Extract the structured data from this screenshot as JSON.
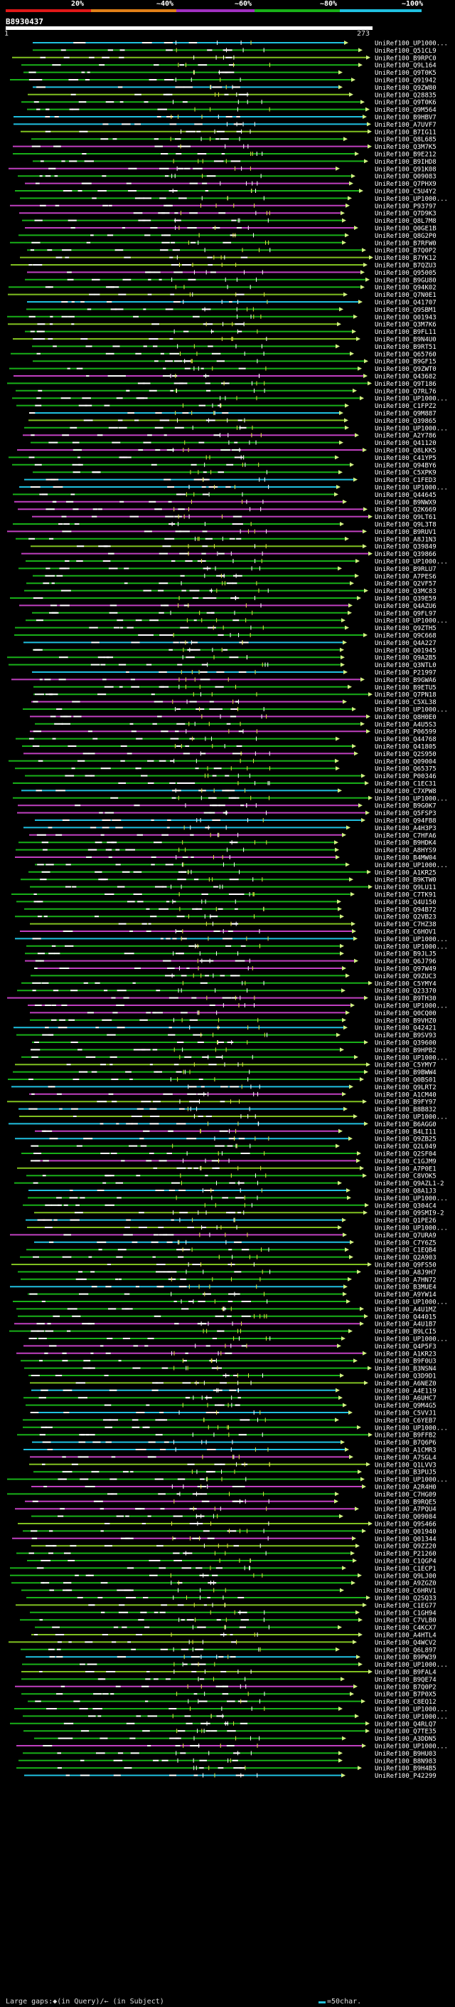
{
  "legend": {
    "items": [
      {
        "label": "20%",
        "color": "#e01818"
      },
      {
        "label": "~40%",
        "color": "#e08018"
      },
      {
        "label": "~60%",
        "color": "#a030c0"
      },
      {
        "label": "~80%",
        "color": "#18b018"
      },
      {
        "label": "~100%",
        "color": "#20c0e0"
      }
    ]
  },
  "query": {
    "id": "B8930437",
    "start": "1",
    "end": "273"
  },
  "hits": [
    "UniRef100_UP1000...",
    "UniRef100_Q51CL9",
    "UniRef100_B9RPC0",
    "UniRef100_Q9L164",
    "UniRef100_Q9T0K5",
    "UniRef100_Q91942",
    "UniRef100_Q9ZW80",
    "UniRef100_Q28835",
    "UniRef100_Q9T0K6",
    "UniRef100_Q9M564",
    "UniRef100_B9HBV7",
    "UniRef100_A7UVF7",
    "UniRef100_B7IG11",
    "UniRef100_Q8L685",
    "UniRef100_Q3M7K5",
    "UniRef100_B9E212",
    "UniRef100_B9IHD8",
    "UniRef100_Q91K08",
    "UniRef100_Q09083",
    "UniRef100_Q7PHX9",
    "UniRef100_C5U4Y2",
    "UniRef100_UP1000...",
    "UniRef100_P93797",
    "UniRef100_Q7D9K3",
    "UniRef100_Q8L7M8",
    "UniRef100_Q0GE1B",
    "UniRef100_Q8G2P0",
    "UniRef100_B7RFW0",
    "UniRef100_B7Q0P2",
    "UniRef100_B7YK12",
    "UniRef100_B7QZU3",
    "UniRef100_Q95005",
    "UniRef100_B9GU80",
    "UniRef100_Q94K02",
    "UniRef100_Q7N0E1",
    "UniRef100_Q41707",
    "UniRef100_Q9SBM1",
    "UniRef100_Q01943",
    "UniRef100_Q3M7K6",
    "UniRef100_B9FL11",
    "UniRef100_B9N4U0",
    "UniRef100_B9RT51",
    "UniRef100_Q65760",
    "UniRef100_B9GF15",
    "UniRef100_Q9ZWT0",
    "UniRef100_Q43682",
    "UniRef100_Q9T186",
    "UniRef100_Q7RL76",
    "UniRef100_UP1000...",
    "UniRef100_C1FPZ2",
    "UniRef100_Q9M887",
    "UniRef100_Q39865",
    "UniRef100_UP1000...",
    "UniRef100_A2Y786",
    "UniRef100_Q41120",
    "UniRef100_Q8LKK5",
    "UniRef100_C41YP5",
    "UniRef100_Q94BY6",
    "UniRef100_C5XPK9",
    "UniRef100_C1FED3",
    "UniRef100_UP1000...",
    "UniRef100_Q44645",
    "UniRef100_B9NWX9",
    "UniRef100_Q2K669",
    "UniRef100_Q9LT61",
    "UniRef100_Q9L3T8",
    "UniRef100_B9RUV1",
    "UniRef100_A8J1N3",
    "UniRef100_Q39849",
    "UniRef100_Q39866",
    "UniRef100_UP1000...",
    "UniRef100_B9RLU7",
    "UniRef100_A7PES6",
    "UniRef100_Q2VF57",
    "UniRef100_Q3MC83",
    "UniRef100_Q39E59",
    "UniRef100_Q4AZU6",
    "UniRef100_Q9FL97",
    "UniRef100_UP1000...",
    "UniRef100_Q9ZTH5",
    "UniRef100_Q9C668",
    "UniRef100_Q4A227",
    "UniRef100_Q01945",
    "UniRef100_Q9A2B5",
    "UniRef100_Q3NTL0",
    "UniRef100_P21997",
    "UniRef100_B9GWA6",
    "UniRef100_B9ETU5",
    "UniRef100_Q7PN18",
    "UniRef100_C5XL38",
    "UniRef100_UP1000...",
    "UniRef100_Q8H0E0",
    "UniRef100_A4U5S3",
    "UniRef100_P06599",
    "UniRef100_Q44768",
    "UniRef100_Q41805",
    "UniRef100_Q2S950",
    "UniRef100_Q09004",
    "UniRef100_Q65375",
    "UniRef100_P00346",
    "UniRef100_C1EC31",
    "UniRef100_C7XPW8",
    "UniRef100_UP1000...",
    "UniRef100_B9G0K7",
    "UniRef100_Q5FSP3",
    "UniRef100_Q94FB8",
    "UniRef100_A4H3P3",
    "UniRef100_C7HFA6",
    "UniRef100_B9HDK4",
    "UniRef100_A8HYS9",
    "UniRef100_B4MW04",
    "UniRef100_UP1000...",
    "UniRef100_A1KR25",
    "UniRef100_B9KTW0",
    "UniRef100_Q9LU11",
    "UniRef100_C7TK91",
    "UniRef100_Q4U150",
    "UniRef100_Q94B72",
    "UniRef100_Q2VB23",
    "UniRef100_C7HZ38",
    "UniRef100_C6HOV1",
    "UniRef100_UP1000...",
    "UniRef100_UP1000...",
    "UniRef100_B9JLJ5",
    "UniRef100_Q6J796",
    "UniRef100_Q97W49",
    "UniRef100_Q9ZUC3",
    "UniRef100_C5YMY4",
    "UniRef100_Q23370",
    "UniRef100_B9TH30",
    "UniRef100_UP1000...",
    "UniRef100_Q0CQ00",
    "UniRef100_B9VHZ0",
    "UniRef100_Q42421",
    "UniRef100_B9SV93",
    "UniRef100_Q39600",
    "UniRef100_B9HPB2",
    "UniRef100_UP1000...",
    "UniRef100_C5YMY7",
    "UniRef100_B9BWW4",
    "UniRef100_Q0BS01",
    "UniRef100_Q9LRT2",
    "UniRef100_A1CM40",
    "UniRef100_B9FY97",
    "UniRef100_B8B832",
    "UniRef100_UP1000...",
    "UniRef100_B6AGG0",
    "UniRef100_B4LI11",
    "UniRef100_Q9ZB25",
    "UniRef100_Q2L049",
    "UniRef100_Q2SF04",
    "UniRef100_C1GJM9",
    "UniRef100_A7P0E1",
    "UniRef100_C8VOK5",
    "UniRef100_Q9AZL1-2",
    "UniRef100_Q8A1J3",
    "UniRef100_UP1000...",
    "UniRef100_Q304C4",
    "UniRef100_Q9SMI9-2",
    "UniRef100_Q1PE26",
    "UniRef100_UP1000...",
    "UniRef100_Q7URA9",
    "UniRef100_C7Y6Z5",
    "UniRef100_C1EQB4",
    "UniRef100_Q2A903",
    "UniRef100_Q9FS50",
    "UniRef100_A8J9H7",
    "UniRef100_A7HN72",
    "UniRef100_B3MUE4",
    "UniRef100_A9YW14",
    "UniRef100_UP1000...",
    "UniRef100_A4U1MZ",
    "UniRef100_Q44015",
    "UniRef100_A4U1B7",
    "UniRef100_B9LCI5",
    "UniRef100_UP1000...",
    "UniRef100_Q4P5F3",
    "UniRef100_A1KR23",
    "UniRef100_B9F0U3",
    "UniRef100_B3NSN4",
    "UniRef100_Q3D9D1",
    "UniRef100_A6NEZ0",
    "UniRef100_A4E119",
    "UniRef100_A6UHC7",
    "UniRef100_Q9M4G5",
    "UniRef100_C5VVJ1",
    "UniRef100_C6YEB7",
    "UniRef100_UP1000...",
    "UniRef100_B9FFB2",
    "UniRef100_B7Q6P6",
    "UniRef100_A1CMR3",
    "UniRef100_A7SGL4",
    "UniRef100_Q1LVV3",
    "UniRef100_B3PUJ5",
    "UniRef100_UP1000...",
    "UniRef100_A2R4H0",
    "UniRef100_C7HG09",
    "UniRef100_B9RQE5",
    "UniRef100_A7PQU4",
    "UniRef100_Q09084",
    "UniRef100_Q9S466",
    "UniRef100_Q01940",
    "UniRef100_Q01344",
    "UniRef100_Q9ZZ20",
    "UniRef100_P21260",
    "UniRef100_C1QGP4",
    "UniRef100_C1ECP1",
    "UniRef100_Q9LJ00",
    "UniRef100_A9ZGZ0",
    "UniRef100_C6HRV1",
    "UniRef100_Q2SQ33",
    "UniRef100_C1EG77",
    "UniRef100_C1GH94",
    "UniRef100_C7VLB0",
    "UniRef100_C4KCX7",
    "UniRef100_A4HTL4",
    "UniRef100_Q4WCV2",
    "UniRef100_Q6L897",
    "UniRef100_B9PW39",
    "UniRef100_UP1000...",
    "UniRef100_B9FAL4",
    "UniRef100_B9QE74",
    "UniRef100_B7Q0P2",
    "UniRef100_B7P0X5",
    "UniRef100_C8EQ12",
    "UniRef100_UP1000...",
    "UniRef100_UP1000...",
    "UniRef100_Q4RLQ7",
    "UniRef100_Q7TE35",
    "UniRef100_A3DDN5",
    "UniRef100_UP1000...",
    "UniRef100_B9HU03",
    "UniRef100_B8N983",
    "UniRef100_B9H4B5",
    "UniRef100_P42299"
  ],
  "footer": {
    "left": "Large gaps:◆(in Query)/← (in Subject)",
    "right": "=50char."
  }
}
